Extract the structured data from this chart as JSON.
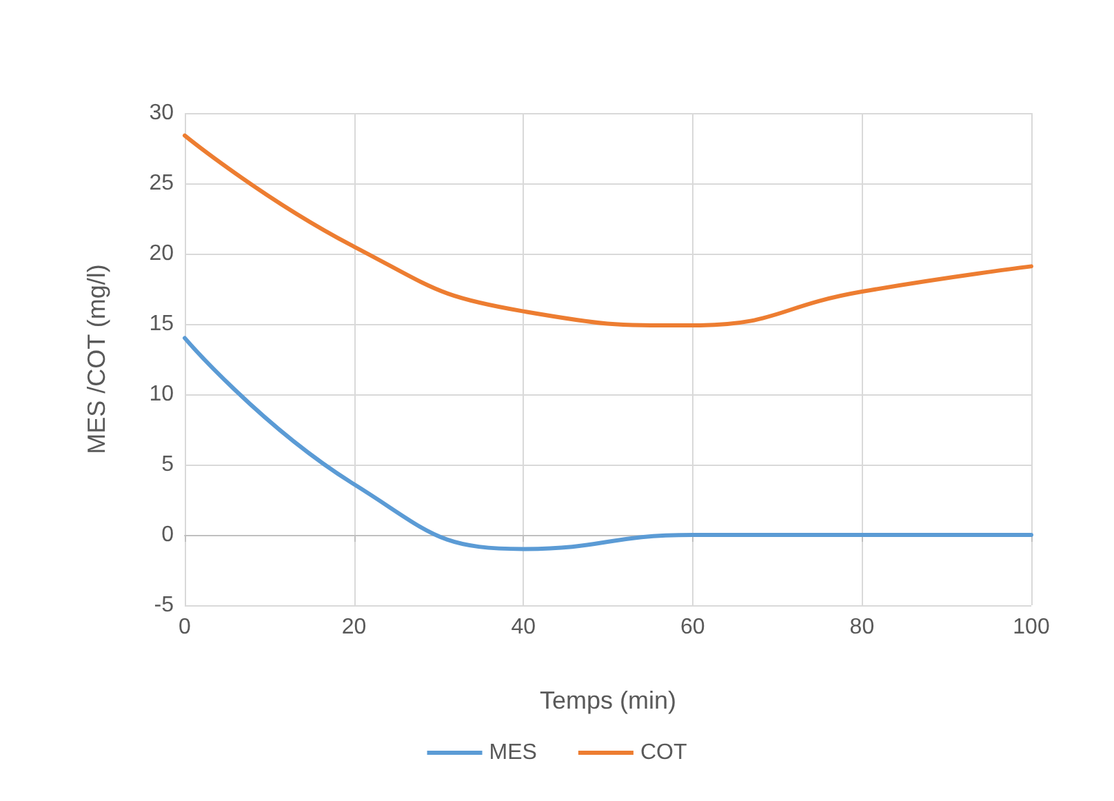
{
  "chart_data": {
    "type": "line",
    "xlabel": "Temps (min)",
    "ylabel": "MES /COT (mg/l)",
    "x": [
      0,
      20,
      40,
      60,
      80,
      100
    ],
    "series": [
      {
        "name": "MES",
        "color": "#5b9bd5",
        "values": [
          14,
          3.6,
          -1,
          0,
          0,
          0
        ]
      },
      {
        "name": "COT",
        "color": "#ed7d31",
        "values": [
          28.4,
          20.5,
          15.9,
          14.9,
          17.3,
          19.1
        ]
      }
    ],
    "xlim": [
      0,
      100
    ],
    "xticks": [
      0,
      20,
      40,
      60,
      80,
      100
    ],
    "ylim": [
      -5,
      30
    ],
    "yticks": [
      -5,
      0,
      5,
      10,
      15,
      20,
      25,
      30
    ],
    "grid": true,
    "legend": "bottom",
    "marker": "none",
    "line_style": "solid"
  }
}
